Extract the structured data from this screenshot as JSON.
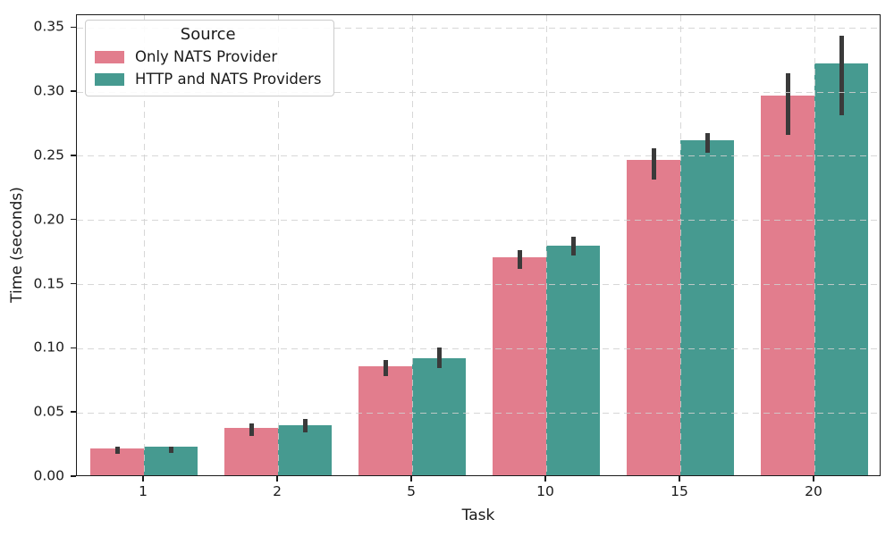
{
  "chart_data": {
    "type": "bar",
    "title": "",
    "xlabel": "Task",
    "ylabel": "Time (seconds)",
    "categories": [
      "1",
      "2",
      "5",
      "10",
      "15",
      "20"
    ],
    "series": [
      {
        "name": "Only NATS Provider",
        "color": "#e27d8d",
        "values": [
          0.021,
          0.037,
          0.085,
          0.17,
          0.246,
          0.296
        ],
        "err_low": [
          0.018,
          0.032,
          0.079,
          0.162,
          0.232,
          0.267
        ],
        "err_high": [
          0.024,
          0.042,
          0.091,
          0.177,
          0.256,
          0.315
        ]
      },
      {
        "name": "HTTP and NATS Providers",
        "color": "#469a90",
        "values": [
          0.022,
          0.039,
          0.091,
          0.179,
          0.261,
          0.321
        ],
        "err_low": [
          0.019,
          0.035,
          0.085,
          0.173,
          0.253,
          0.282
        ],
        "err_high": [
          0.024,
          0.045,
          0.101,
          0.187,
          0.268,
          0.344
        ]
      }
    ],
    "ylim": [
      0,
      0.36
    ],
    "ytick_values": [
      0.0,
      0.05,
      0.1,
      0.15,
      0.2,
      0.25,
      0.3,
      0.35
    ],
    "ytick_labels": [
      "0.00",
      "0.05",
      "0.10",
      "0.15",
      "0.20",
      "0.25",
      "0.30",
      "0.35"
    ],
    "grid": "dashed",
    "error_bar_color": "#3a3a3a",
    "legend": {
      "title": "Source",
      "position": "upper-left"
    }
  }
}
